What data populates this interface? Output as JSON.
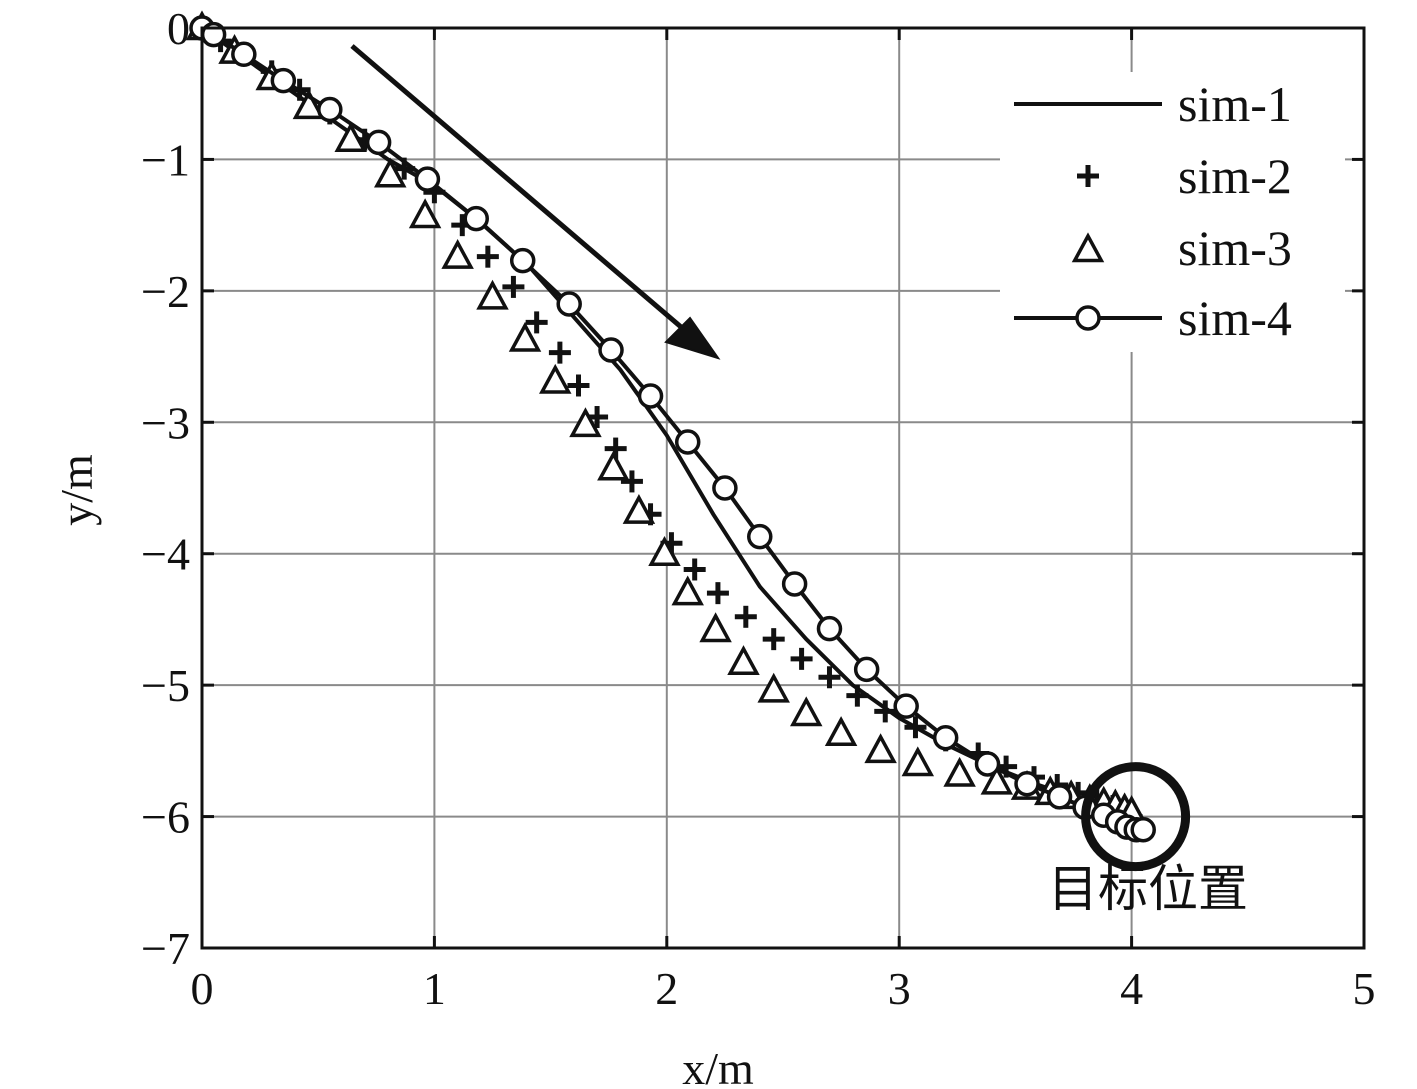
{
  "chart_data": {
    "type": "line",
    "xlabel": "x/m",
    "ylabel": "y/m",
    "xlim": [
      0,
      5
    ],
    "ylim": [
      -7,
      0
    ],
    "xticks": [
      0,
      1,
      2,
      3,
      4,
      5
    ],
    "yticks": [
      0,
      -1,
      -2,
      -3,
      -4,
      -5,
      -6,
      -7
    ],
    "xtick_labels": [
      "0",
      "1",
      "2",
      "3",
      "4",
      "5"
    ],
    "ytick_labels": [
      "0",
      "−1",
      "−2",
      "−3",
      "−4",
      "−5",
      "−6",
      "−7"
    ],
    "grid": true,
    "legend_position": "top-right",
    "annotation": "目标位置",
    "target": {
      "x": 4.0,
      "y": -6.0
    },
    "series": [
      {
        "name": "sim-1",
        "style": "solid-line",
        "points": [
          [
            0,
            0
          ],
          [
            0.2,
            -0.25
          ],
          [
            0.4,
            -0.5
          ],
          [
            0.6,
            -0.75
          ],
          [
            0.8,
            -1.0
          ],
          [
            1.0,
            -1.2
          ],
          [
            1.2,
            -1.48
          ],
          [
            1.4,
            -1.8
          ],
          [
            1.6,
            -2.2
          ],
          [
            1.8,
            -2.6
          ],
          [
            2.0,
            -3.1
          ],
          [
            2.2,
            -3.7
          ],
          [
            2.4,
            -4.25
          ],
          [
            2.6,
            -4.65
          ],
          [
            2.8,
            -5.0
          ],
          [
            3.0,
            -5.25
          ],
          [
            3.2,
            -5.45
          ],
          [
            3.4,
            -5.62
          ],
          [
            3.6,
            -5.76
          ],
          [
            3.8,
            -5.88
          ],
          [
            4.0,
            -6.0
          ]
        ]
      },
      {
        "name": "sim-2",
        "style": "plus-markers",
        "points": [
          [
            0,
            0
          ],
          [
            0.08,
            -0.1
          ],
          [
            0.18,
            -0.2
          ],
          [
            0.3,
            -0.33
          ],
          [
            0.42,
            -0.47
          ],
          [
            0.55,
            -0.65
          ],
          [
            0.7,
            -0.85
          ],
          [
            0.87,
            -1.07
          ],
          [
            1.0,
            -1.25
          ],
          [
            1.12,
            -1.5
          ],
          [
            1.23,
            -1.74
          ],
          [
            1.34,
            -1.97
          ],
          [
            1.44,
            -2.24
          ],
          [
            1.54,
            -2.47
          ],
          [
            1.62,
            -2.72
          ],
          [
            1.7,
            -2.96
          ],
          [
            1.78,
            -3.2
          ],
          [
            1.85,
            -3.45
          ],
          [
            1.93,
            -3.7
          ],
          [
            2.02,
            -3.92
          ],
          [
            2.12,
            -4.12
          ],
          [
            2.22,
            -4.3
          ],
          [
            2.34,
            -4.48
          ],
          [
            2.46,
            -4.65
          ],
          [
            2.58,
            -4.8
          ],
          [
            2.7,
            -4.94
          ],
          [
            2.82,
            -5.08
          ],
          [
            2.94,
            -5.2
          ],
          [
            3.07,
            -5.32
          ],
          [
            3.2,
            -5.42
          ],
          [
            3.34,
            -5.52
          ],
          [
            3.46,
            -5.62
          ],
          [
            3.58,
            -5.7
          ],
          [
            3.68,
            -5.76
          ],
          [
            3.77,
            -5.82
          ],
          [
            3.85,
            -5.87
          ],
          [
            3.92,
            -5.92
          ],
          [
            3.97,
            -5.96
          ],
          [
            4.0,
            -6.0
          ]
        ]
      },
      {
        "name": "sim-3",
        "style": "triangle-markers",
        "points": [
          [
            0,
            0
          ],
          [
            0.14,
            -0.18
          ],
          [
            0.3,
            -0.38
          ],
          [
            0.46,
            -0.6
          ],
          [
            0.64,
            -0.85
          ],
          [
            0.81,
            -1.12
          ],
          [
            0.96,
            -1.43
          ],
          [
            1.1,
            -1.74
          ],
          [
            1.25,
            -2.05
          ],
          [
            1.39,
            -2.37
          ],
          [
            1.52,
            -2.69
          ],
          [
            1.65,
            -3.02
          ],
          [
            1.77,
            -3.35
          ],
          [
            1.88,
            -3.68
          ],
          [
            1.99,
            -4.0
          ],
          [
            2.09,
            -4.3
          ],
          [
            2.21,
            -4.58
          ],
          [
            2.33,
            -4.83
          ],
          [
            2.46,
            -5.04
          ],
          [
            2.6,
            -5.22
          ],
          [
            2.75,
            -5.37
          ],
          [
            2.92,
            -5.5
          ],
          [
            3.08,
            -5.6
          ],
          [
            3.26,
            -5.68
          ],
          [
            3.42,
            -5.74
          ],
          [
            3.55,
            -5.78
          ],
          [
            3.65,
            -5.82
          ],
          [
            3.74,
            -5.85
          ],
          [
            3.82,
            -5.88
          ],
          [
            3.88,
            -5.9
          ],
          [
            3.93,
            -5.92
          ],
          [
            3.97,
            -5.95
          ],
          [
            4.0,
            -5.97
          ]
        ]
      },
      {
        "name": "sim-4",
        "style": "line-with-circles",
        "points": [
          [
            0,
            0
          ],
          [
            0.05,
            -0.05
          ],
          [
            0.18,
            -0.2
          ],
          [
            0.35,
            -0.4
          ],
          [
            0.55,
            -0.62
          ],
          [
            0.76,
            -0.87
          ],
          [
            0.97,
            -1.15
          ],
          [
            1.18,
            -1.45
          ],
          [
            1.38,
            -1.77
          ],
          [
            1.58,
            -2.1
          ],
          [
            1.76,
            -2.45
          ],
          [
            1.93,
            -2.8
          ],
          [
            2.09,
            -3.15
          ],
          [
            2.25,
            -3.5
          ],
          [
            2.4,
            -3.87
          ],
          [
            2.55,
            -4.23
          ],
          [
            2.7,
            -4.57
          ],
          [
            2.86,
            -4.88
          ],
          [
            3.03,
            -5.16
          ],
          [
            3.2,
            -5.4
          ],
          [
            3.38,
            -5.6
          ],
          [
            3.55,
            -5.75
          ],
          [
            3.69,
            -5.85
          ],
          [
            3.8,
            -5.93
          ],
          [
            3.88,
            -5.99
          ],
          [
            3.94,
            -6.04
          ],
          [
            3.98,
            -6.08
          ],
          [
            4.02,
            -6.1
          ],
          [
            4.05,
            -6.1
          ]
        ]
      }
    ]
  }
}
